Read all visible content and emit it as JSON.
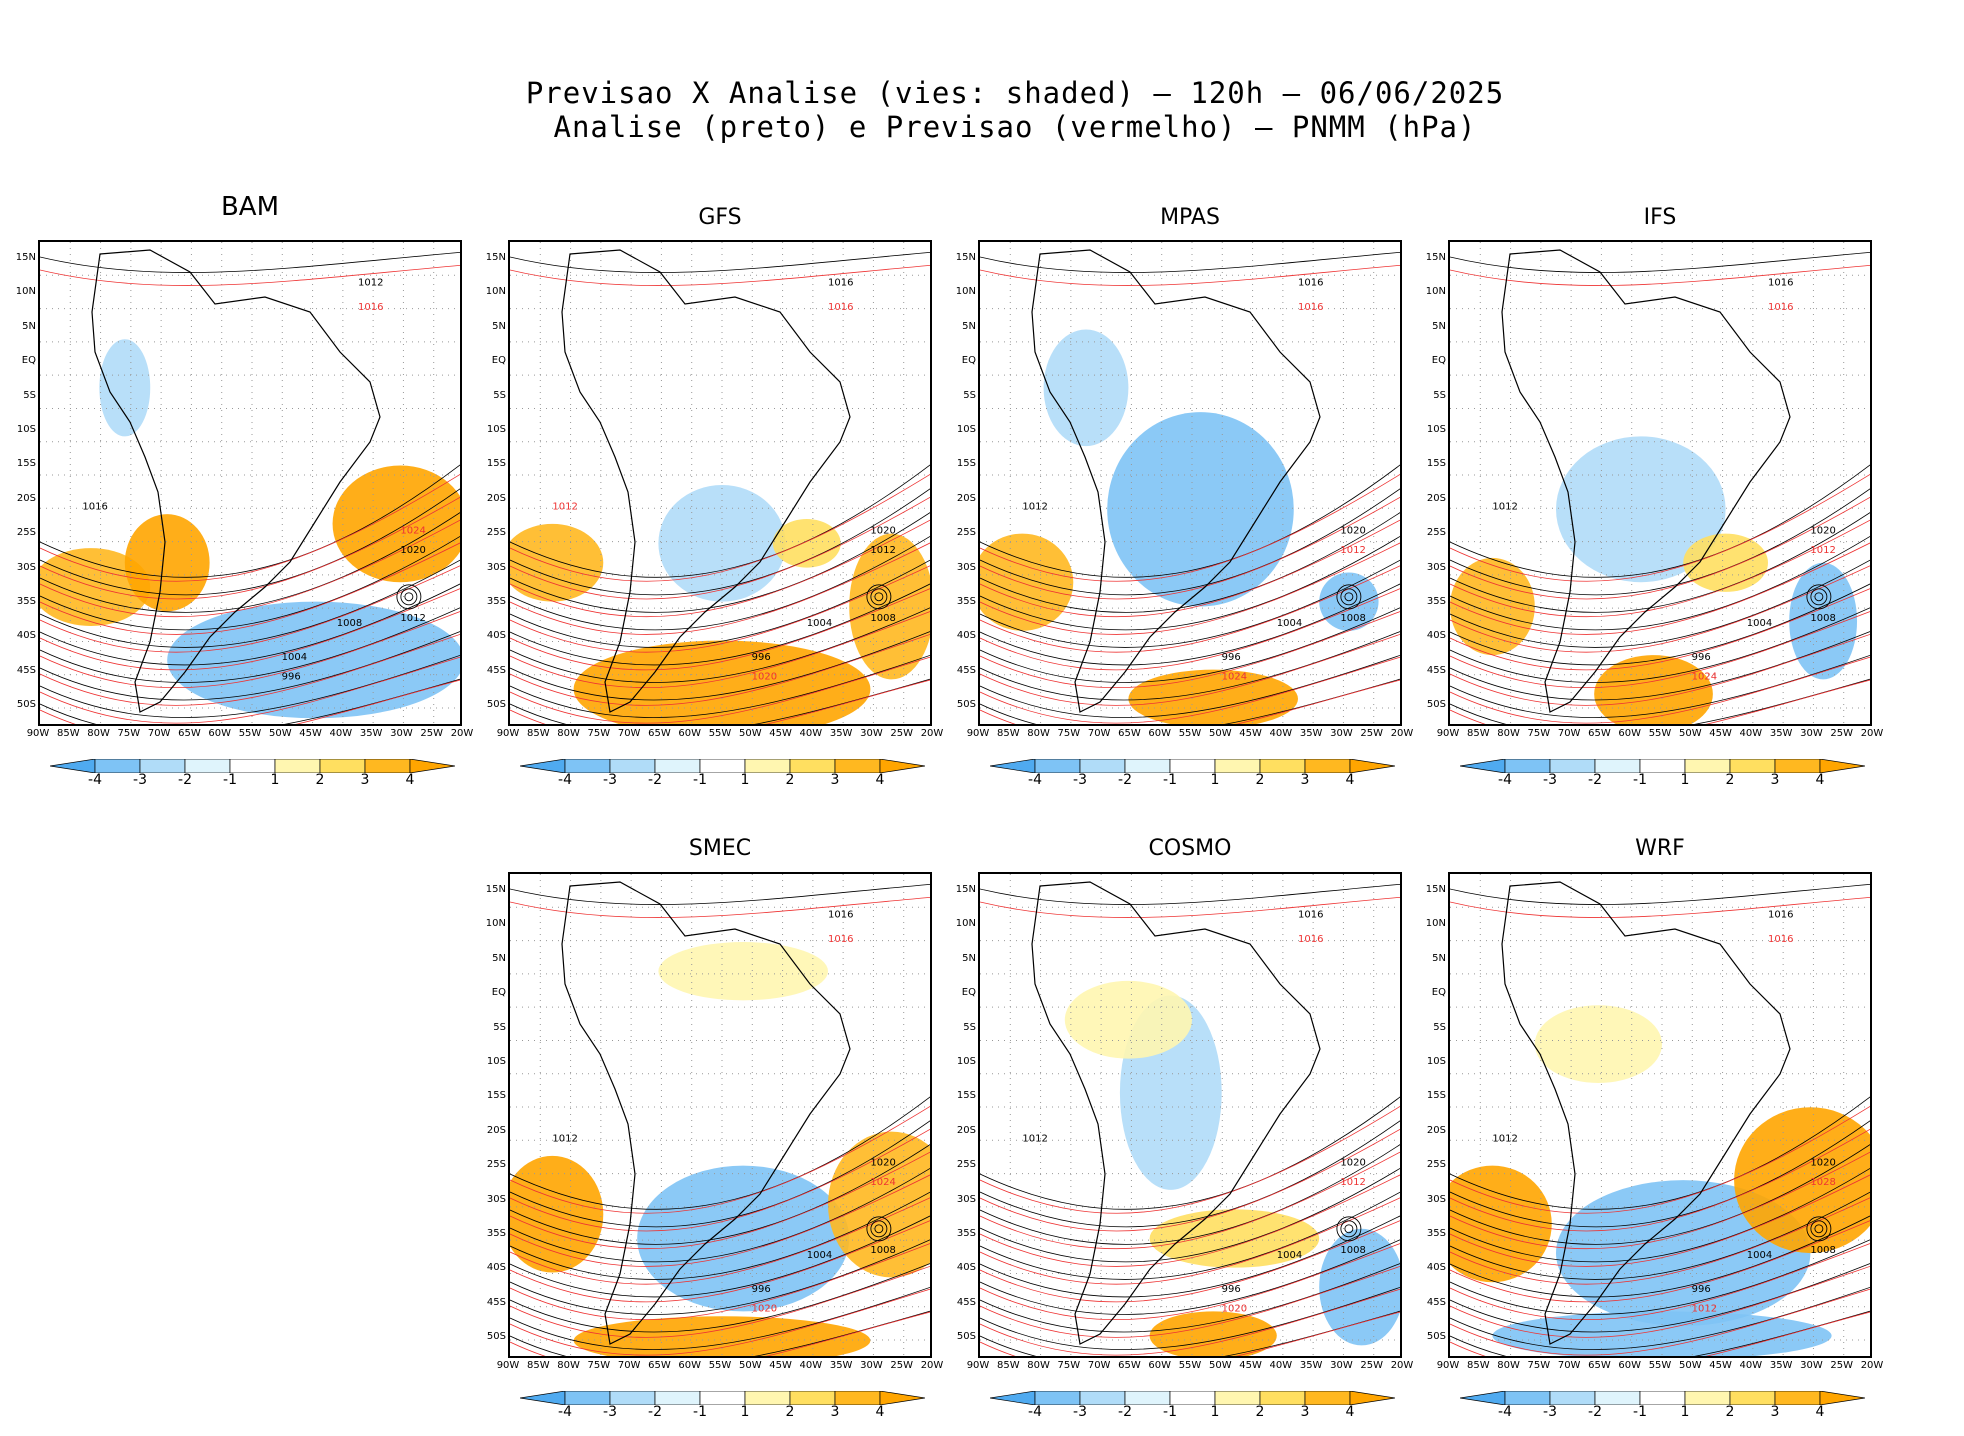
{
  "title": {
    "line1": "Previsao X Analise (vies: shaded) – 120h – 06/06/2025",
    "line2": "Analise (preto) e Previsao (vermelho) – PNMM (hPa)"
  },
  "lat_labels": [
    "15N",
    "10N",
    "5N",
    "EQ",
    "5S",
    "10S",
    "15S",
    "20S",
    "25S",
    "30S",
    "35S",
    "40S",
    "45S",
    "50S"
  ],
  "lon_labels": [
    "90W",
    "85W",
    "80W",
    "75W",
    "70W",
    "65W",
    "60W",
    "55W",
    "50W",
    "45W",
    "40W",
    "35W",
    "30W",
    "25W",
    "20W"
  ],
  "colorbar": {
    "labels": [
      "-4",
      "-3",
      "-2",
      "-1",
      "1",
      "2",
      "3",
      "4"
    ],
    "colors": [
      "#4faaf0",
      "#7ec3f5",
      "#b0dcf8",
      "#dff4fc",
      "#ffffff",
      "#fff6b0",
      "#ffdf60",
      "#ffb820",
      "#ffa500"
    ]
  },
  "panels": [
    {
      "name": "BAM",
      "contours": [
        {
          "text": "1012",
          "color": "black"
        },
        {
          "text": "1016",
          "color": "red"
        },
        {
          "text": "1016",
          "color": "black"
        },
        {
          "text": "1024",
          "color": "red"
        },
        {
          "text": "1020",
          "color": "black"
        },
        {
          "text": "1012",
          "color": "black"
        },
        {
          "text": "1008",
          "color": "black"
        },
        {
          "text": "1004",
          "color": "black"
        },
        {
          "text": "996",
          "color": "black"
        }
      ]
    },
    {
      "name": "GFS",
      "contours": [
        {
          "text": "1016",
          "color": "black"
        },
        {
          "text": "1016",
          "color": "red"
        },
        {
          "text": "1012",
          "color": "red"
        },
        {
          "text": "1020",
          "color": "black"
        },
        {
          "text": "1012",
          "color": "black"
        },
        {
          "text": "1008",
          "color": "black"
        },
        {
          "text": "1004",
          "color": "black"
        },
        {
          "text": "996",
          "color": "black"
        },
        {
          "text": "1020",
          "color": "red"
        }
      ]
    },
    {
      "name": "MPAS",
      "contours": [
        {
          "text": "1016",
          "color": "black"
        },
        {
          "text": "1016",
          "color": "red"
        },
        {
          "text": "1012",
          "color": "black"
        },
        {
          "text": "1020",
          "color": "black"
        },
        {
          "text": "1012",
          "color": "red"
        },
        {
          "text": "1008",
          "color": "black"
        },
        {
          "text": "1004",
          "color": "black"
        },
        {
          "text": "996",
          "color": "black"
        },
        {
          "text": "1024",
          "color": "red"
        }
      ]
    },
    {
      "name": "IFS",
      "contours": [
        {
          "text": "1016",
          "color": "black"
        },
        {
          "text": "1016",
          "color": "red"
        },
        {
          "text": "1012",
          "color": "black"
        },
        {
          "text": "1020",
          "color": "black"
        },
        {
          "text": "1012",
          "color": "red"
        },
        {
          "text": "1008",
          "color": "black"
        },
        {
          "text": "1004",
          "color": "black"
        },
        {
          "text": "996",
          "color": "black"
        },
        {
          "text": "1024",
          "color": "red"
        }
      ]
    },
    {
      "name": "SMEC",
      "contours": [
        {
          "text": "1016",
          "color": "black"
        },
        {
          "text": "1016",
          "color": "red"
        },
        {
          "text": "1012",
          "color": "black"
        },
        {
          "text": "1020",
          "color": "black"
        },
        {
          "text": "1024",
          "color": "red"
        },
        {
          "text": "1008",
          "color": "black"
        },
        {
          "text": "1004",
          "color": "black"
        },
        {
          "text": "996",
          "color": "black"
        },
        {
          "text": "1020",
          "color": "red"
        }
      ]
    },
    {
      "name": "COSMO",
      "contours": [
        {
          "text": "1016",
          "color": "black"
        },
        {
          "text": "1016",
          "color": "red"
        },
        {
          "text": "1012",
          "color": "black"
        },
        {
          "text": "1020",
          "color": "black"
        },
        {
          "text": "1012",
          "color": "red"
        },
        {
          "text": "1008",
          "color": "black"
        },
        {
          "text": "1004",
          "color": "black"
        },
        {
          "text": "996",
          "color": "black"
        },
        {
          "text": "1020",
          "color": "red"
        }
      ]
    },
    {
      "name": "WRF",
      "contours": [
        {
          "text": "1016",
          "color": "black"
        },
        {
          "text": "1016",
          "color": "red"
        },
        {
          "text": "1012",
          "color": "black"
        },
        {
          "text": "1020",
          "color": "black"
        },
        {
          "text": "1028",
          "color": "red"
        },
        {
          "text": "1008",
          "color": "black"
        },
        {
          "text": "1004",
          "color": "black"
        },
        {
          "text": "996",
          "color": "black"
        },
        {
          "text": "1012",
          "color": "red"
        }
      ]
    }
  ]
}
